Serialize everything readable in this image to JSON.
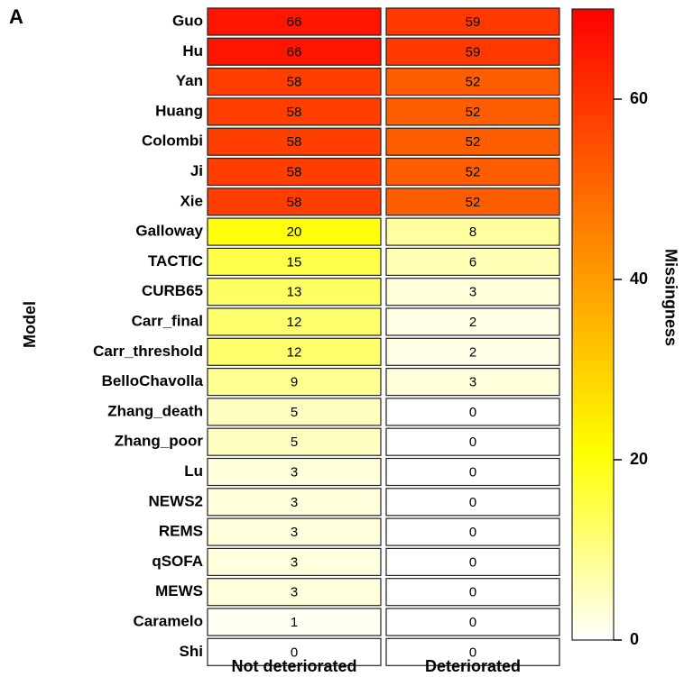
{
  "chart_data": {
    "type": "heatmap",
    "panel_label": "A",
    "y_label": "Model",
    "columns": [
      "Not deteriorated",
      "Deteriorated"
    ],
    "rows": [
      "Guo",
      "Hu",
      "Yan",
      "Huang",
      "Colombi",
      "Ji",
      "Xie",
      "Galloway",
      "TACTIC",
      "CURB65",
      "Carr_final",
      "Carr_threshold",
      "BelloChavolla",
      "Zhang_death",
      "Zhang_poor",
      "Lu",
      "NEWS2",
      "REMS",
      "qSOFA",
      "MEWS",
      "Caramelo",
      "Shi"
    ],
    "values": [
      [
        66,
        59
      ],
      [
        66,
        59
      ],
      [
        58,
        52
      ],
      [
        58,
        52
      ],
      [
        58,
        52
      ],
      [
        58,
        52
      ],
      [
        58,
        52
      ],
      [
        20,
        8
      ],
      [
        15,
        6
      ],
      [
        13,
        3
      ],
      [
        12,
        2
      ],
      [
        12,
        2
      ],
      [
        9,
        3
      ],
      [
        5,
        0
      ],
      [
        5,
        0
      ],
      [
        3,
        0
      ],
      [
        3,
        0
      ],
      [
        3,
        0
      ],
      [
        3,
        0
      ],
      [
        3,
        0
      ],
      [
        1,
        0
      ],
      [
        0,
        0
      ]
    ],
    "colorbar_label": "Missingness",
    "clim": [
      0,
      70
    ],
    "cticks": [
      0,
      20,
      40,
      60
    ],
    "colorscale": [
      [
        0,
        "#ffffff"
      ],
      [
        0.3,
        "#ffff00"
      ],
      [
        1,
        "#ff0000"
      ]
    ]
  }
}
